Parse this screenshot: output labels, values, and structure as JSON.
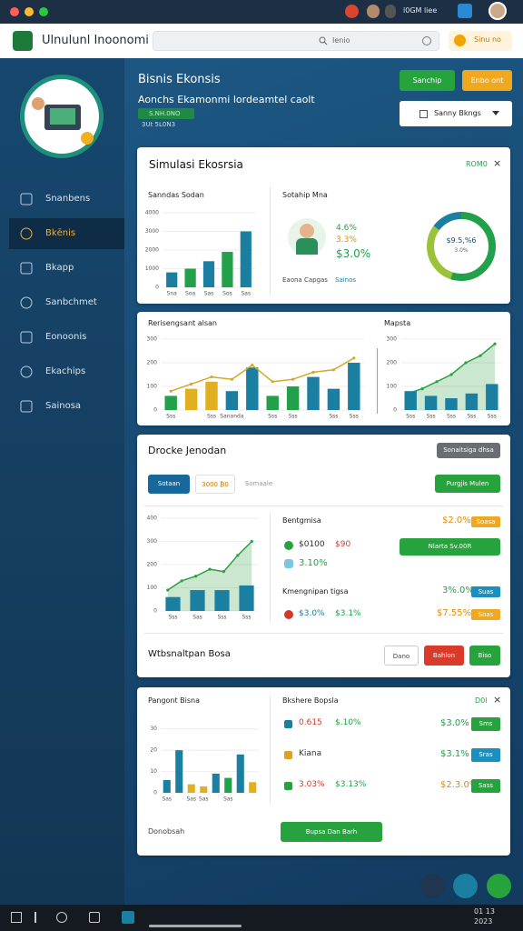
{
  "window": {
    "status": "l0GM liee"
  },
  "header": {
    "app_title": "Ulnulunl Inoonomi",
    "search": "Ienio",
    "action": "Sinu no"
  },
  "sidebar": {
    "items": [
      "Snanbens",
      "Bkēnis",
      "Bkapp",
      "Sanbchmet",
      "Eonoonis",
      "Ekachips",
      "Sainosa"
    ],
    "active": 1
  },
  "page": {
    "title": "Bisnis Ekonsis",
    "subtitle": "Aonchs Ekamonmi lordeamtel caolt",
    "badge": "S.NH.0NO",
    "meta": "3Ut 5L0N3",
    "buttons": [
      "Sanchip",
      "Enbo ont"
    ],
    "dropdown": "Sanny Bkngs"
  },
  "card1": {
    "title": "Simulasi Ekosrsia",
    "tag": "ROM0",
    "left_title": "Sanndas Sodan",
    "right_title": "Sotahip Mna",
    "chart": {
      "categories": [
        "Sna",
        "Soa",
        "Sas",
        "Sos",
        "Sas"
      ],
      "ylim": [
        0,
        4000
      ],
      "yticks": [
        0,
        1000,
        2000,
        3000,
        4000
      ],
      "bars": {
        "values": [
          800,
          1000,
          1400,
          1900,
          3000
        ],
        "colors": [
          "#1a7fa0",
          "#22a04a",
          "#1a7fa0",
          "#22a04a",
          "#1a7fa0"
        ]
      }
    },
    "stats": [
      "4.6%",
      "3.3%",
      "$3.0%"
    ],
    "labels": [
      "Eaona Capgas",
      "Sainos"
    ],
    "donut": {
      "center": "$9.5,%6",
      "sub": "3.0%",
      "values": [
        55,
        30,
        15
      ],
      "colors": [
        "#22a04a",
        "#9cc23a",
        "#1a7fa0"
      ]
    }
  },
  "card2": {
    "left_title": "Rerisengsant alsan",
    "right_title": "Mapsta",
    "chart_left": {
      "categories": [
        "Sss",
        null,
        "Sss",
        "Sananda",
        null,
        "Sss",
        "Sss",
        null,
        "Sss",
        "Sss"
      ],
      "ylim": [
        0,
        300
      ],
      "yticks": [
        0,
        100,
        200,
        300
      ],
      "bars": {
        "values": [
          60,
          90,
          120,
          80,
          180,
          60,
          100,
          140,
          90,
          200
        ],
        "colors": [
          "#22a04a",
          "#e0b020",
          "#e0b020",
          "#1a7fa0",
          "#1a7fa0",
          "#22a04a",
          "#22a04a",
          "#1a7fa0",
          "#1a7fa0",
          "#1a7fa0"
        ]
      },
      "line": {
        "values": [
          80,
          110,
          140,
          130,
          190,
          120,
          130,
          160,
          170,
          220
        ],
        "color": "#d4a828"
      }
    },
    "chart_right": {
      "categories": [
        "Sss",
        "Sss",
        "Sss",
        "Sss",
        "Sss"
      ],
      "ylim": [
        0,
        300
      ],
      "yticks": [
        0,
        100,
        200,
        300
      ],
      "bars": {
        "values": [
          80,
          60,
          50,
          70,
          110
        ],
        "colors": [
          "#1a7fa0",
          "#1a7fa0",
          "#1a7fa0",
          "#1a7fa0",
          "#1a7fa0"
        ]
      },
      "area": {
        "values": [
          70,
          90,
          120,
          150,
          200,
          230,
          280
        ],
        "color": "#2ea043"
      }
    }
  },
  "card3": {
    "title": "Drocke Jenodan",
    "top_button": "Sonaitsiga dhsa",
    "tabs": [
      "Sotaan",
      "3000 ₿0",
      "Somaale"
    ],
    "action": "Purgjis Mulen",
    "chart": {
      "categories": [
        "Sss",
        "Sas",
        "Sss",
        "Sss"
      ],
      "ylim": [
        0,
        400
      ],
      "yticks": [
        0,
        100,
        200,
        300,
        400
      ],
      "bars": {
        "values": [
          60,
          90,
          90,
          110
        ],
        "colors": [
          "#1a7fa0",
          "#1a7fa0",
          "#1a7fa0",
          "#1a7fa0"
        ]
      },
      "area": {
        "values": [
          90,
          130,
          150,
          180,
          170,
          240,
          300
        ],
        "color": "#2ea043"
      }
    },
    "section1": {
      "title": "Bentgmisa",
      "value": "$2.0%",
      "badge": "Soasa",
      "row_a": "$0100",
      "row_b": "$90",
      "button": "Nlarta Sv.00R",
      "row_c": "3.10%"
    },
    "section2": {
      "title": "Kmengnipan tigsa",
      "value": "3%.0%",
      "badge": "Suas",
      "row_a": "$3.0%",
      "row_b": "$3.1%",
      "value2": "$7.55%",
      "badge2": "Soas"
    },
    "footer": {
      "title": "Wtbsnaltpan Bosa",
      "buttons": [
        "Dano",
        "Bahlon",
        "Biso"
      ]
    }
  },
  "card4": {
    "left_title": "Pangont Bisna",
    "right_title": "Bkshere Bopsla",
    "tag": "D0l",
    "chart": {
      "categories": [
        "Sas",
        null,
        "Sas",
        "Sas",
        null,
        "Sas",
        null,
        null
      ],
      "ylim": [
        0,
        35
      ],
      "yticks": [
        0,
        10,
        20,
        30
      ],
      "bars": {
        "values": [
          6,
          20,
          4,
          3,
          9,
          7,
          18,
          5
        ],
        "colors": [
          "#1a7fa0",
          "#1a7fa0",
          "#e0b020",
          "#e0b020",
          "#1a7fa0",
          "#22a04a",
          "#1a7fa0",
          "#e0b020"
        ]
      }
    },
    "rows": [
      {
        "a": "0.615",
        "b": "$.10%",
        "value": "$3.0%",
        "badge": "Sms"
      },
      {
        "a": "Kiana",
        "value": "$3.1%",
        "badge": "Sras"
      },
      {
        "a": "3.03%",
        "b": "$3.13%",
        "value": "$2.3.0%",
        "badge": "Sass"
      }
    ],
    "footer": "Donobsah",
    "button": "Bupsa Dan Barh"
  },
  "taskbar": {
    "time": "01 13",
    "date": "2023"
  }
}
